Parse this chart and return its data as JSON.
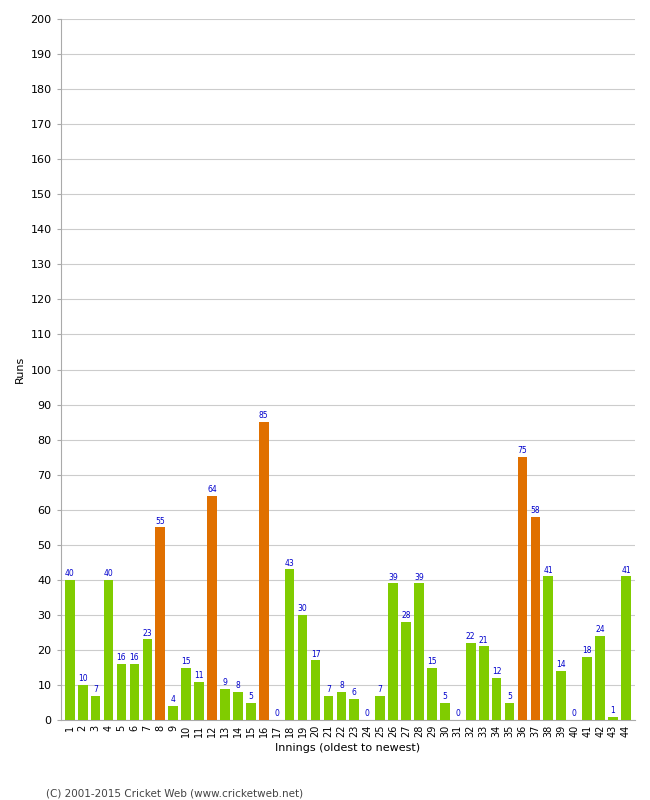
{
  "innings": [
    1,
    2,
    3,
    4,
    5,
    6,
    7,
    8,
    9,
    10,
    11,
    12,
    13,
    14,
    15,
    16,
    17,
    18,
    19,
    20,
    21,
    22,
    23,
    24,
    25,
    26,
    27,
    28,
    29,
    30,
    31,
    32,
    33,
    34,
    35,
    36,
    37,
    38,
    39,
    40,
    41,
    42,
    43,
    44
  ],
  "values": [
    40,
    10,
    7,
    40,
    16,
    16,
    23,
    55,
    4,
    15,
    11,
    64,
    9,
    8,
    5,
    85,
    0,
    43,
    30,
    17,
    7,
    8,
    6,
    0,
    7,
    39,
    28,
    39,
    15,
    5,
    0,
    22,
    21,
    12,
    5,
    75,
    58,
    41,
    14,
    0,
    18,
    24,
    1,
    41
  ],
  "colors": [
    "#80cc00",
    "#80cc00",
    "#80cc00",
    "#80cc00",
    "#80cc00",
    "#80cc00",
    "#80cc00",
    "#e07000",
    "#80cc00",
    "#80cc00",
    "#80cc00",
    "#e07000",
    "#80cc00",
    "#80cc00",
    "#80cc00",
    "#e07000",
    "#80cc00",
    "#80cc00",
    "#80cc00",
    "#80cc00",
    "#80cc00",
    "#80cc00",
    "#80cc00",
    "#80cc00",
    "#80cc00",
    "#80cc00",
    "#80cc00",
    "#80cc00",
    "#80cc00",
    "#80cc00",
    "#80cc00",
    "#80cc00",
    "#80cc00",
    "#80cc00",
    "#80cc00",
    "#e07000",
    "#e07000",
    "#80cc00",
    "#80cc00",
    "#80cc00",
    "#80cc00",
    "#80cc00",
    "#80cc00",
    "#80cc00"
  ],
  "ylabel": "Runs",
  "xlabel": "Innings (oldest to newest)",
  "ylim": [
    0,
    200
  ],
  "yticks": [
    0,
    10,
    20,
    30,
    40,
    50,
    60,
    70,
    80,
    90,
    100,
    110,
    120,
    130,
    140,
    150,
    160,
    170,
    180,
    190,
    200
  ],
  "label_color": "#0000cc",
  "bar_width": 0.75,
  "background_color": "#ffffff",
  "grid_color": "#cccccc",
  "footer": "(C) 2001-2015 Cricket Web (www.cricketweb.net)"
}
